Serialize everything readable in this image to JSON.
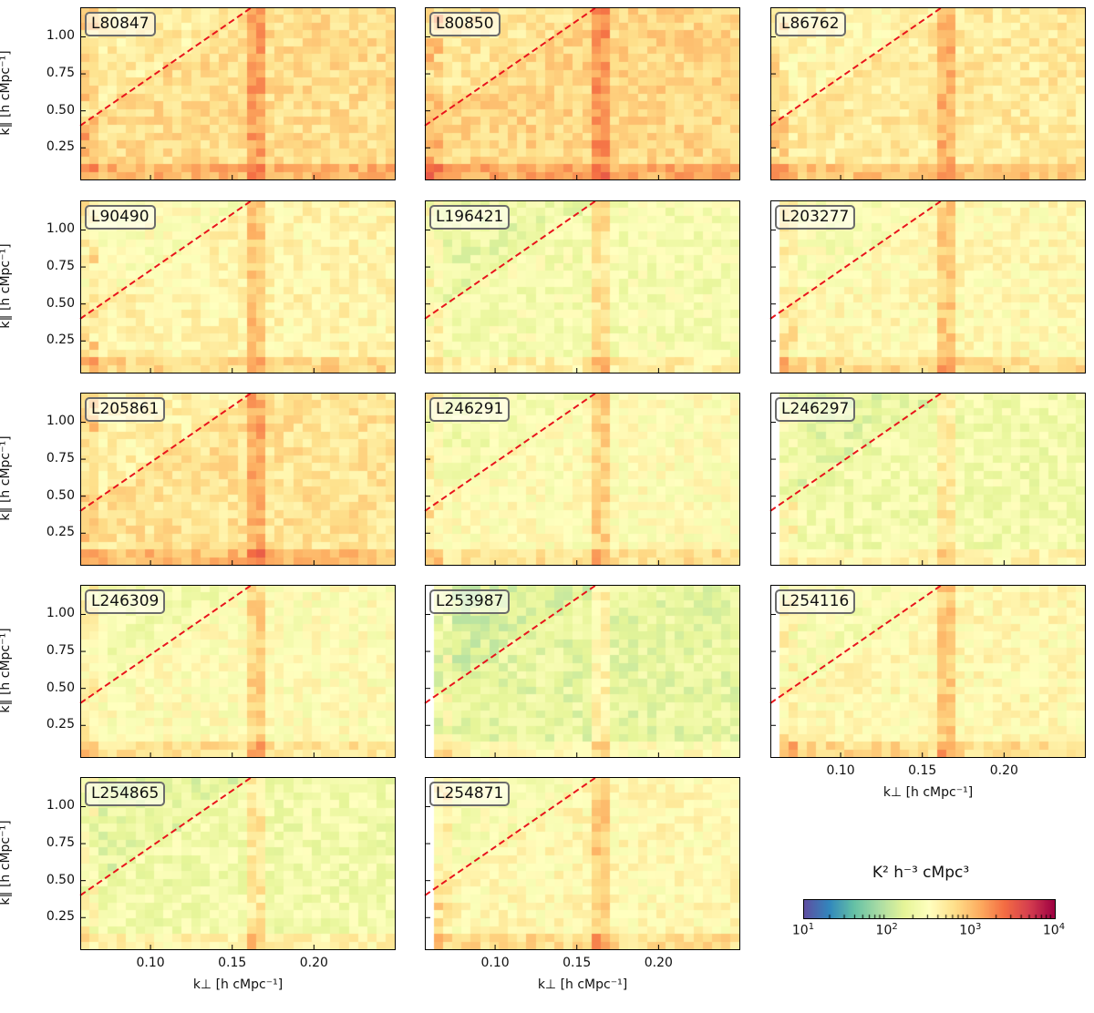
{
  "chart_data": {
    "type": "heatmap",
    "panel_labels": [
      "L80847",
      "L80850",
      "L86762",
      "L90490",
      "L196421",
      "L203277",
      "L205861",
      "L246291",
      "L246297",
      "L246309",
      "L253987",
      "L254116",
      "L254865",
      "L254871"
    ],
    "xlabel": "k⊥ [h cMpc⁻¹]",
    "ylabel": "k∥ [h cMpc⁻¹]",
    "xlim": [
      0.057,
      0.25
    ],
    "ylim": [
      0.03,
      1.2
    ],
    "xticks": [
      "0.10",
      "0.15",
      "0.20"
    ],
    "xtick_values": [
      0.1,
      0.15,
      0.2
    ],
    "yticks": [
      "1.00",
      "0.75",
      "0.50",
      "0.25"
    ],
    "ytick_values": [
      1.0,
      0.75,
      0.5,
      0.25
    ],
    "wedge_line": {
      "style": "dashed",
      "color": "#e8141c",
      "points": [
        [
          0.057,
          0.4
        ],
        [
          0.162,
          1.2
        ]
      ]
    },
    "vertical_band_kperp": [
      0.16,
      0.17
    ],
    "colorbar": {
      "label": "K² h⁻³ cMpc³",
      "scale": "log",
      "range": [
        10,
        10000
      ],
      "tick_labels": [
        "10",
        "10",
        "10",
        "10"
      ],
      "tick_exponents": [
        "1",
        "2",
        "3",
        "4"
      ],
      "colormap": "Spectral_r"
    },
    "panel_typical_log10_power": [
      2.8,
      2.85,
      2.7,
      2.6,
      2.4,
      2.55,
      2.75,
      2.5,
      2.35,
      2.5,
      2.25,
      2.55,
      2.35,
      2.55
    ]
  }
}
